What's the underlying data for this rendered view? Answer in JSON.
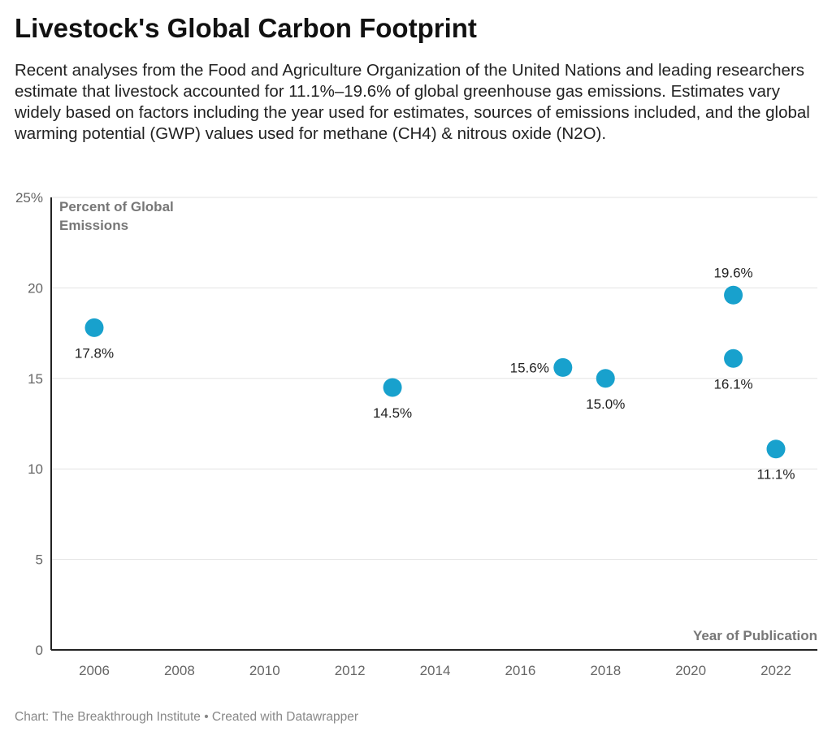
{
  "title": "Livestock's Global Carbon Footprint",
  "subtitle": "Recent analyses from the Food and Agriculture Organization of the United Nations and leading researchers estimate that livestock accounted for 11.1%–19.6% of global greenhouse gas emissions. Estimates vary widely based on factors including the year used for estimates, sources of emissions included, and the global warming potential (GWP) values used for methane (CH4) & nitrous oxide (N2O).",
  "footer": "Chart: The Breakthrough Institute • Created with Datawrapper",
  "chart_data": {
    "type": "scatter",
    "ylabel": "Percent of Global Emissions",
    "xlabel": "Year of Publication",
    "xlim": [
      2005,
      2023
    ],
    "ylim": [
      0,
      25
    ],
    "xticks": [
      "2006",
      "2008",
      "2010",
      "2012",
      "2014",
      "2016",
      "2018",
      "2020",
      "2022"
    ],
    "yticks": [
      "0",
      "5",
      "10",
      "15",
      "20",
      "25%"
    ],
    "grid": true,
    "color": "#18a1cd",
    "points": [
      {
        "x": 2006,
        "y": 17.8,
        "label": "17.8%",
        "label_pos": "below"
      },
      {
        "x": 2013,
        "y": 14.5,
        "label": "14.5%",
        "label_pos": "below"
      },
      {
        "x": 2017,
        "y": 15.6,
        "label": "15.6%",
        "label_pos": "left"
      },
      {
        "x": 2018,
        "y": 15.0,
        "label": "15.0%",
        "label_pos": "below"
      },
      {
        "x": 2021,
        "y": 19.6,
        "label": "19.6%",
        "label_pos": "above"
      },
      {
        "x": 2021,
        "y": 16.1,
        "label": "16.1%",
        "label_pos": "below"
      },
      {
        "x": 2022,
        "y": 11.1,
        "label": "11.1%",
        "label_pos": "below"
      }
    ]
  }
}
